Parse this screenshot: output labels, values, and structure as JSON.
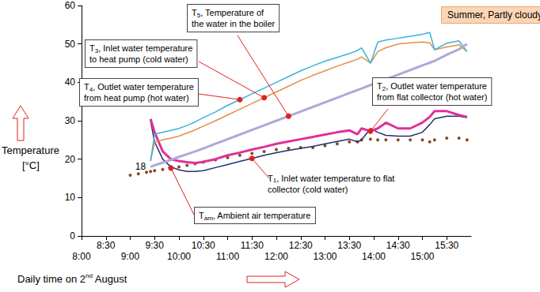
{
  "chart_data": {
    "type": "line",
    "title": "Summer, Partly cloudy",
    "xlabel": "Daily time on 2nd August",
    "ylabel": "Temperature [°C]",
    "xlim": [
      480,
      960
    ],
    "xticks": [
      {
        "value": 480,
        "label": "8:00"
      },
      {
        "value": 510,
        "label": "8:30"
      },
      {
        "value": 540,
        "label": "9:00"
      },
      {
        "value": 570,
        "label": "9:30"
      },
      {
        "value": 600,
        "label": "10:00"
      },
      {
        "value": 630,
        "label": "10:30"
      },
      {
        "value": 660,
        "label": "11:00"
      },
      {
        "value": 690,
        "label": "11:30"
      },
      {
        "value": 720,
        "label": "12:00"
      },
      {
        "value": 750,
        "label": "12:30"
      },
      {
        "value": 780,
        "label": "13:00"
      },
      {
        "value": 810,
        "label": "13:30"
      },
      {
        "value": 840,
        "label": "14:00"
      },
      {
        "value": 870,
        "label": "14:30"
      },
      {
        "value": 900,
        "label": "15:00"
      },
      {
        "value": 930,
        "label": "15:30"
      }
    ],
    "ylim": [
      0,
      60
    ],
    "yticks": [
      0,
      10,
      20,
      30,
      40,
      50,
      60
    ],
    "grid": false,
    "legend": false,
    "x": [
      540,
      550,
      560,
      565,
      570,
      580,
      590,
      600,
      610,
      620,
      630,
      645,
      660,
      675,
      690,
      705,
      720,
      735,
      750,
      765,
      780,
      795,
      810,
      820,
      825,
      836,
      845,
      855,
      870,
      885,
      900,
      909,
      915,
      930,
      945,
      955
    ],
    "series": [
      {
        "name": "T1, Inlet water temperature to flat collector (cold water)",
        "color": "#1f3070",
        "marker": "none",
        "line_style": "solid",
        "values": [
          null,
          null,
          null,
          30,
          24.5,
          20,
          18,
          17.2,
          16.8,
          16.8,
          17,
          17.8,
          18.6,
          19.4,
          20.2,
          21,
          21.7,
          22.3,
          22.8,
          23.3,
          24,
          24.6,
          25.2,
          24.5,
          25,
          28,
          27,
          26.2,
          26,
          26,
          27,
          29,
          30.5,
          31.2,
          31.2,
          30.8
        ]
      },
      {
        "name": "T2, Outlet water temperature from flat collector (hot water)",
        "color": "#e0309a",
        "marker": "none",
        "line_style": "solid",
        "values": [
          null,
          null,
          null,
          30.5,
          27,
          22,
          20,
          19.5,
          19.2,
          19,
          19.3,
          20,
          21,
          21.7,
          22.5,
          23.2,
          24,
          24.6,
          25.2,
          25.8,
          26.4,
          27,
          27.5,
          26.5,
          28,
          27.3,
          28,
          29.5,
          28,
          28,
          29.5,
          31,
          32.5,
          32.5,
          31.5,
          31
        ]
      },
      {
        "name": "T3, Inlet water temperature to heat pump (cold water)",
        "color": "#e0904a",
        "marker": "none",
        "line_style": "solid",
        "values": [
          null,
          null,
          null,
          19.5,
          24.5,
          25,
          25.5,
          26,
          26.8,
          27.6,
          28.6,
          30,
          31.5,
          33,
          34.5,
          36,
          37.5,
          39,
          40.5,
          41.8,
          43,
          44.2,
          45.3,
          46,
          46.6,
          45,
          48,
          49,
          50,
          50.3,
          50.5,
          50.3,
          48.5,
          49.2,
          49.8,
          48
        ]
      },
      {
        "name": "T4, Outlet water temperature from heat pump (hot water)",
        "color": "#3bb3dc",
        "marker": "none",
        "line_style": "solid",
        "values": [
          null,
          null,
          null,
          19.5,
          26.5,
          27,
          27.5,
          28,
          28.8,
          29.7,
          30.8,
          32.3,
          34,
          35.5,
          37,
          38.5,
          40,
          41.5,
          43,
          44.3,
          45.5,
          46.5,
          47.5,
          48.3,
          49,
          45,
          50.5,
          51,
          51.5,
          52,
          52.5,
          53,
          48.5,
          50.2,
          50.8,
          48
        ]
      },
      {
        "name": "T5, Temperature of the water in the boiler",
        "color": "#b0a8d8",
        "marker": "none",
        "line_style": "solid",
        "values": [
          null,
          null,
          null,
          18,
          18.4,
          19.1,
          19.8,
          20.6,
          21.3,
          22,
          22.8,
          24,
          25.2,
          26.4,
          27.6,
          28.8,
          30,
          31.2,
          32.4,
          33.6,
          34.8,
          36,
          37.2,
          38,
          38.4,
          39.3,
          40,
          40.8,
          42,
          43.2,
          44.4,
          45.1,
          45.6,
          47.2,
          48.6,
          50
        ]
      },
      {
        "name": "Tam, Ambient air temperature",
        "color": "#8b4a1c",
        "marker": "circle",
        "line_style": "none",
        "values": [
          15.8,
          16.2,
          16.6,
          16.8,
          17,
          17.3,
          17.7,
          18,
          18.4,
          18.8,
          19.2,
          19.8,
          20.4,
          21,
          21.5,
          22,
          22.5,
          22.8,
          23,
          23,
          23.5,
          24,
          24.5,
          24.5,
          25,
          25.2,
          25,
          25,
          25,
          25,
          25,
          24.5,
          25,
          25.5,
          25.5,
          25
        ]
      }
    ]
  }
}
